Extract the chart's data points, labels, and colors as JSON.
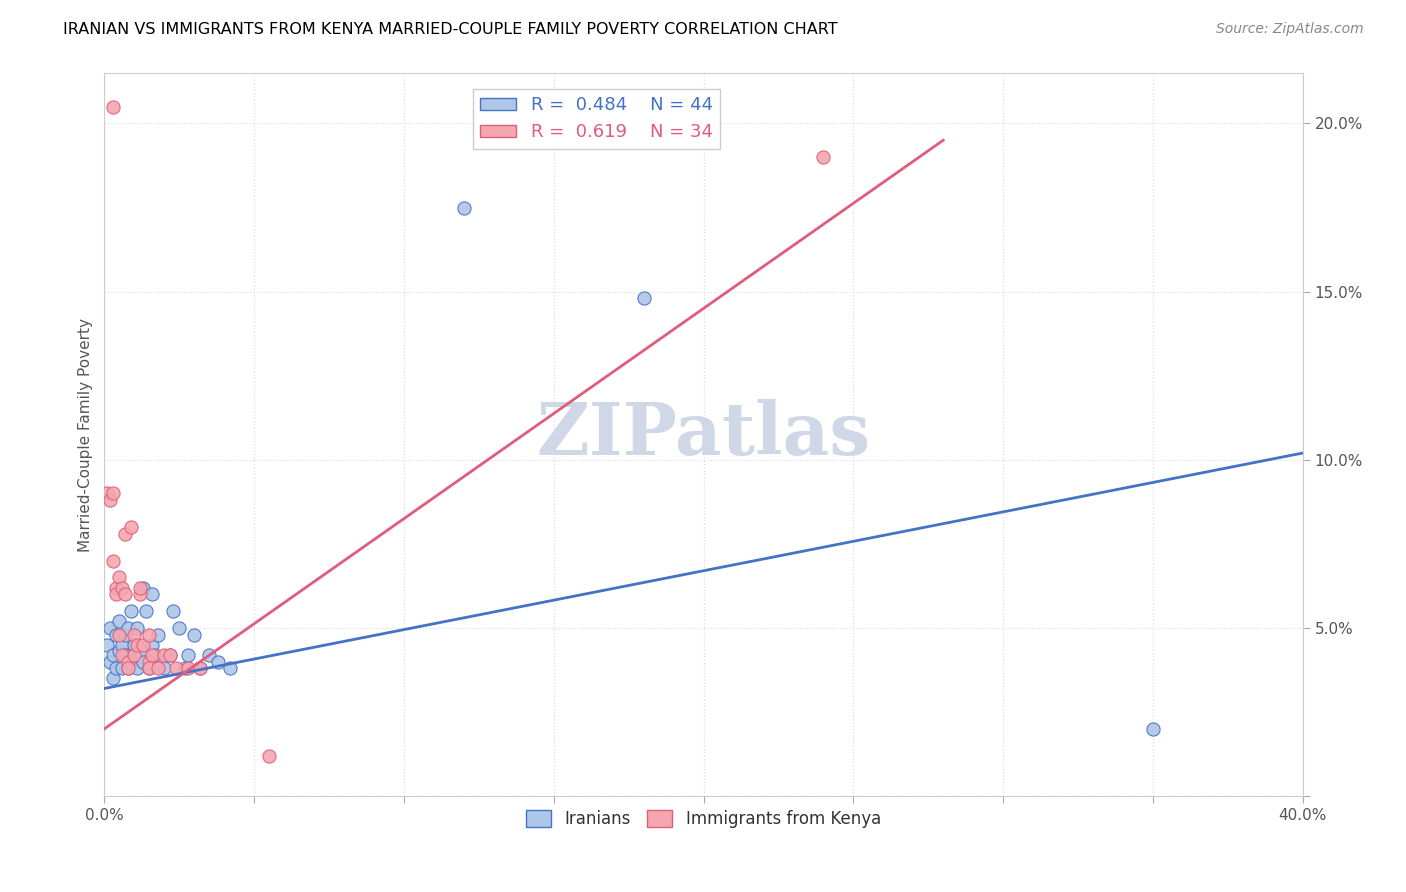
{
  "title": "IRANIAN VS IMMIGRANTS FROM KENYA MARRIED-COUPLE FAMILY POVERTY CORRELATION CHART",
  "source": "Source: ZipAtlas.com",
  "ylabel": "Married-Couple Family Poverty",
  "xlim": [
    0.0,
    0.4
  ],
  "ylim": [
    0.0,
    0.215
  ],
  "xticks": [
    0.0,
    0.05,
    0.1,
    0.15,
    0.2,
    0.25,
    0.3,
    0.35,
    0.4
  ],
  "yticks": [
    0.0,
    0.05,
    0.1,
    0.15,
    0.2
  ],
  "xticklabels": [
    "0.0%",
    "",
    "",
    "",
    "",
    "",
    "",
    "",
    "40.0%"
  ],
  "yticklabels": [
    "",
    "5.0%",
    "10.0%",
    "15.0%",
    "20.0%"
  ],
  "legend_blue_r": "0.484",
  "legend_blue_n": "44",
  "legend_pink_r": "0.619",
  "legend_pink_n": "34",
  "blue_color": "#aec6e8",
  "pink_color": "#f4a7b0",
  "line_blue": "#4472c4",
  "line_pink": "#e05c7a",
  "watermark": "ZIPatlas",
  "watermark_color": "#d0d8e8",
  "blue_scatter": [
    [
      0.001,
      0.045
    ],
    [
      0.002,
      0.04
    ],
    [
      0.002,
      0.05
    ],
    [
      0.003,
      0.035
    ],
    [
      0.003,
      0.042
    ],
    [
      0.004,
      0.048
    ],
    [
      0.004,
      0.038
    ],
    [
      0.005,
      0.052
    ],
    [
      0.005,
      0.043
    ],
    [
      0.006,
      0.045
    ],
    [
      0.006,
      0.038
    ],
    [
      0.007,
      0.048
    ],
    [
      0.007,
      0.042
    ],
    [
      0.008,
      0.05
    ],
    [
      0.008,
      0.038
    ],
    [
      0.009,
      0.055
    ],
    [
      0.009,
      0.04
    ],
    [
      0.01,
      0.045
    ],
    [
      0.01,
      0.042
    ],
    [
      0.011,
      0.038
    ],
    [
      0.011,
      0.05
    ],
    [
      0.012,
      0.043
    ],
    [
      0.013,
      0.062
    ],
    [
      0.013,
      0.04
    ],
    [
      0.014,
      0.055
    ],
    [
      0.015,
      0.038
    ],
    [
      0.016,
      0.045
    ],
    [
      0.016,
      0.06
    ],
    [
      0.017,
      0.042
    ],
    [
      0.018,
      0.048
    ],
    [
      0.02,
      0.038
    ],
    [
      0.022,
      0.042
    ],
    [
      0.023,
      0.055
    ],
    [
      0.025,
      0.05
    ],
    [
      0.027,
      0.038
    ],
    [
      0.028,
      0.042
    ],
    [
      0.03,
      0.048
    ],
    [
      0.032,
      0.038
    ],
    [
      0.035,
      0.042
    ],
    [
      0.038,
      0.04
    ],
    [
      0.042,
      0.038
    ],
    [
      0.12,
      0.175
    ],
    [
      0.18,
      0.148
    ],
    [
      0.35,
      0.02
    ]
  ],
  "pink_scatter": [
    [
      0.001,
      0.09
    ],
    [
      0.002,
      0.088
    ],
    [
      0.003,
      0.09
    ],
    [
      0.003,
      0.07
    ],
    [
      0.004,
      0.062
    ],
    [
      0.004,
      0.06
    ],
    [
      0.005,
      0.065
    ],
    [
      0.005,
      0.048
    ],
    [
      0.006,
      0.062
    ],
    [
      0.006,
      0.042
    ],
    [
      0.007,
      0.06
    ],
    [
      0.007,
      0.078
    ],
    [
      0.008,
      0.04
    ],
    [
      0.008,
      0.038
    ],
    [
      0.009,
      0.08
    ],
    [
      0.01,
      0.048
    ],
    [
      0.01,
      0.042
    ],
    [
      0.011,
      0.045
    ],
    [
      0.012,
      0.06
    ],
    [
      0.012,
      0.062
    ],
    [
      0.013,
      0.045
    ],
    [
      0.015,
      0.048
    ],
    [
      0.015,
      0.04
    ],
    [
      0.015,
      0.038
    ],
    [
      0.016,
      0.042
    ],
    [
      0.018,
      0.038
    ],
    [
      0.02,
      0.042
    ],
    [
      0.022,
      0.042
    ],
    [
      0.024,
      0.038
    ],
    [
      0.028,
      0.038
    ],
    [
      0.032,
      0.038
    ],
    [
      0.055,
      0.012
    ],
    [
      0.24,
      0.19
    ],
    [
      0.003,
      0.205
    ]
  ],
  "blue_line_x": [
    0.0,
    0.4
  ],
  "blue_line_y": [
    0.032,
    0.102
  ],
  "pink_line_x": [
    0.0,
    0.28
  ],
  "pink_line_y": [
    0.02,
    0.195
  ]
}
